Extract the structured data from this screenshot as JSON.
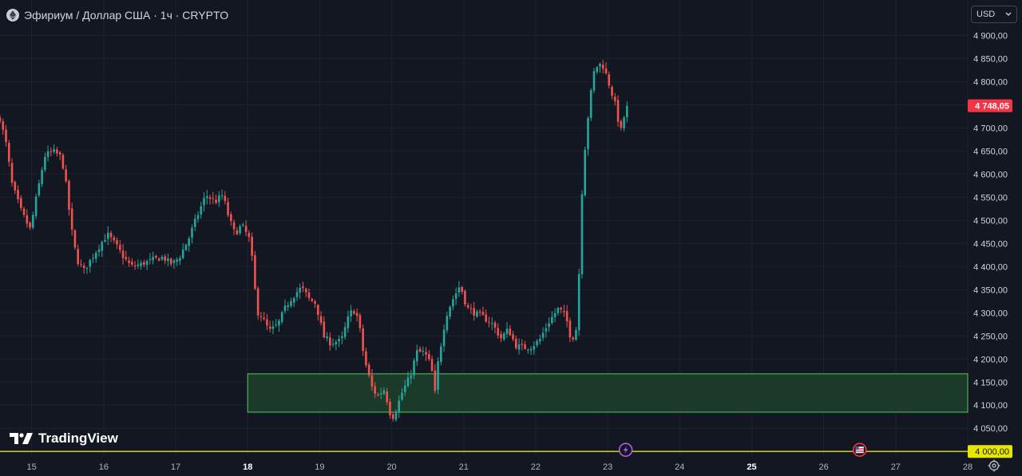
{
  "header": {
    "symbol": "Эфириум / Доллар США · 1ч · CRYPTO",
    "coin_icon": "ethereum-icon"
  },
  "currency_selector": {
    "label": "USD",
    "icon": "chevron-down-icon"
  },
  "branding": {
    "name": "TradingView",
    "icon": "tradingview-logo-icon"
  },
  "settings_icon": "gear-icon",
  "event_icons": [
    {
      "name": "lightning-event-icon",
      "day": 23.25,
      "color": "#b060e0"
    },
    {
      "name": "us-flag-event-icon",
      "day": 26.5,
      "color": "#f23645"
    }
  ],
  "colors": {
    "background": "#131722",
    "grid": "#1e222d",
    "up": "#26a69a",
    "down": "#ef5350",
    "last_price_bg": "#f23645",
    "level_line": "#e6e600",
    "zone_fill": "#1b3a2a",
    "zone_border": "#4caf50"
  },
  "chart_data": {
    "type": "candlestick",
    "title": "Эфириум / Доллар США · 1ч · CRYPTO",
    "x_axis": {
      "unit": "day",
      "range": [
        14.56,
        28.0
      ],
      "tick_labels": [
        "15",
        "16",
        "17",
        "18",
        "19",
        "20",
        "21",
        "22",
        "23",
        "24",
        "25",
        "26",
        "27",
        "28"
      ],
      "tick_values": [
        15,
        16,
        17,
        18,
        19,
        20,
        21,
        22,
        23,
        24,
        25,
        26,
        27,
        28
      ],
      "bold_ticks": [
        "18",
        "25"
      ]
    },
    "y_axis": {
      "range": [
        3990,
        4925
      ],
      "tick_labels": [
        "4 050,00",
        "4 100,00",
        "4 150,00",
        "4 200,00",
        "4 250,00",
        "4 300,00",
        "4 350,00",
        "4 400,00",
        "4 450,00",
        "4 500,00",
        "4 550,00",
        "4 600,00",
        "4 650,00",
        "4 700,00",
        "4 750,00",
        "4 800,00",
        "4 850,00",
        "4 900,00"
      ],
      "tick_values": [
        4050,
        4100,
        4150,
        4200,
        4250,
        4300,
        4350,
        4400,
        4450,
        4500,
        4550,
        4600,
        4650,
        4700,
        4750,
        4800,
        4850,
        4900
      ]
    },
    "grid": true,
    "last_price": {
      "value": 4748.05,
      "label": "4 748,05"
    },
    "horizontal_level": {
      "value": 4000,
      "label": "4 000,00"
    },
    "zone": {
      "x_start": 18.0,
      "x_end": 28.0,
      "y_low": 4085,
      "y_high": 4168
    },
    "close_path": [
      [
        14.56,
        4720
      ],
      [
        14.65,
        4660
      ],
      [
        14.72,
        4580
      ],
      [
        14.85,
        4520
      ],
      [
        14.98,
        4480
      ],
      [
        15.08,
        4560
      ],
      [
        15.18,
        4640
      ],
      [
        15.3,
        4650
      ],
      [
        15.42,
        4635
      ],
      [
        15.5,
        4550
      ],
      [
        15.55,
        4480
      ],
      [
        15.62,
        4420
      ],
      [
        15.72,
        4390
      ],
      [
        15.8,
        4410
      ],
      [
        15.92,
        4440
      ],
      [
        16.05,
        4470
      ],
      [
        16.15,
        4450
      ],
      [
        16.28,
        4420
      ],
      [
        16.38,
        4400
      ],
      [
        16.52,
        4405
      ],
      [
        16.68,
        4415
      ],
      [
        16.82,
        4420
      ],
      [
        16.95,
        4405
      ],
      [
        17.05,
        4420
      ],
      [
        17.18,
        4460
      ],
      [
        17.3,
        4510
      ],
      [
        17.42,
        4555
      ],
      [
        17.55,
        4540
      ],
      [
        17.65,
        4555
      ],
      [
        17.75,
        4500
      ],
      [
        17.82,
        4470
      ],
      [
        17.92,
        4490
      ],
      [
        18.02,
        4460
      ],
      [
        18.08,
        4390
      ],
      [
        18.12,
        4310
      ],
      [
        18.2,
        4290
      ],
      [
        18.3,
        4260
      ],
      [
        18.42,
        4275
      ],
      [
        18.52,
        4310
      ],
      [
        18.62,
        4335
      ],
      [
        18.75,
        4355
      ],
      [
        18.85,
        4330
      ],
      [
        18.95,
        4320
      ],
      [
        19.05,
        4250
      ],
      [
        19.15,
        4235
      ],
      [
        19.3,
        4240
      ],
      [
        19.42,
        4300
      ],
      [
        19.5,
        4305
      ],
      [
        19.55,
        4270
      ],
      [
        19.62,
        4200
      ],
      [
        19.72,
        4140
      ],
      [
        19.8,
        4120
      ],
      [
        19.9,
        4135
      ],
      [
        20.0,
        4070
      ],
      [
        20.05,
        4085
      ],
      [
        20.15,
        4130
      ],
      [
        20.25,
        4160
      ],
      [
        20.35,
        4215
      ],
      [
        20.45,
        4215
      ],
      [
        20.55,
        4185
      ],
      [
        20.6,
        4120
      ],
      [
        20.65,
        4200
      ],
      [
        20.75,
        4295
      ],
      [
        20.85,
        4330
      ],
      [
        20.95,
        4360
      ],
      [
        21.05,
        4310
      ],
      [
        21.15,
        4300
      ],
      [
        21.28,
        4290
      ],
      [
        21.4,
        4275
      ],
      [
        21.52,
        4245
      ],
      [
        21.62,
        4265
      ],
      [
        21.72,
        4230
      ],
      [
        21.82,
        4225
      ],
      [
        21.92,
        4225
      ],
      [
        22.05,
        4240
      ],
      [
        22.18,
        4280
      ],
      [
        22.32,
        4310
      ],
      [
        22.42,
        4290
      ],
      [
        22.5,
        4240
      ],
      [
        22.56,
        4265
      ],
      [
        22.6,
        4380
      ],
      [
        22.65,
        4610
      ],
      [
        22.72,
        4720
      ],
      [
        22.82,
        4830
      ],
      [
        22.92,
        4840
      ],
      [
        23.0,
        4805
      ],
      [
        23.05,
        4780
      ],
      [
        23.12,
        4740
      ],
      [
        23.18,
        4690
      ],
      [
        23.25,
        4740
      ],
      [
        23.3,
        4748
      ]
    ]
  }
}
